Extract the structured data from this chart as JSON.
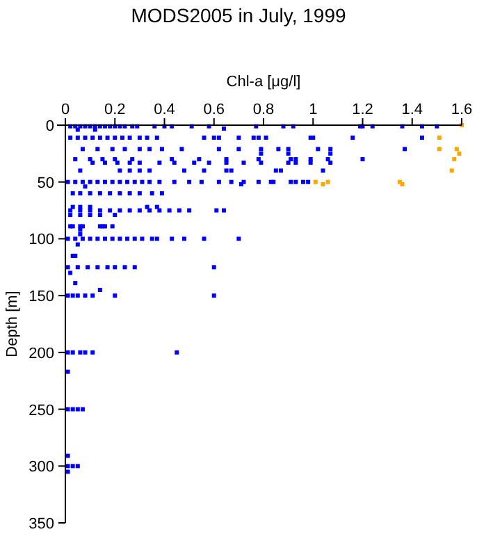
{
  "chart_data": {
    "type": "scatter",
    "title": "MODS2005 in July, 1999",
    "xlabel": "Chl-a [μg/l]",
    "ylabel": "Depth [m]",
    "xlim": [
      0,
      1.6
    ],
    "xticks": [
      0,
      0.2,
      0.4,
      0.6,
      0.8,
      1,
      1.2,
      1.4,
      1.6
    ],
    "ylim": [
      350,
      0
    ],
    "yticks": [
      0,
      50,
      100,
      150,
      200,
      250,
      300,
      350
    ],
    "grid": false,
    "marker": "square",
    "series": [
      {
        "color": "#0000ff",
        "x": [
          0.02,
          0.04,
          0.06,
          0.08,
          0.1,
          0.12,
          0.14,
          0.16,
          0.18,
          0.2,
          0.22,
          0.24,
          0.27,
          0.29,
          0.36,
          0.4,
          0.43,
          0.51,
          0.58,
          0.77,
          0.88,
          0.92,
          1.19,
          1.2,
          1.24,
          1.36,
          1.44,
          1.5,
          0.05,
          0.12,
          0.64,
          0.02,
          0.05,
          0.08,
          0.11,
          0.14,
          0.17,
          0.2,
          0.23,
          0.26,
          0.3,
          0.33,
          0.37,
          0.56,
          0.6,
          0.62,
          0.7,
          0.76,
          0.78,
          0.81,
          0.99,
          1.0,
          1.16,
          1.44,
          0.07,
          0.13,
          0.19,
          0.24,
          0.3,
          0.34,
          0.39,
          0.47,
          0.62,
          0.7,
          0.79,
          0.86,
          0.9,
          1.02,
          1.07,
          1.37,
          0.79,
          0.9,
          1.07,
          0.04,
          0.1,
          0.15,
          0.2,
          0.27,
          0.43,
          0.54,
          0.65,
          0.78,
          0.91,
          0.93,
          0.99,
          1.06,
          1.2,
          0.11,
          0.16,
          0.21,
          0.26,
          0.3,
          0.38,
          0.44,
          0.52,
          0.58,
          0.65,
          0.72,
          0.79,
          0.9,
          0.93,
          0.99,
          1.07,
          0.06,
          0.22,
          0.26,
          0.3,
          0.34,
          0.48,
          0.56,
          0.65,
          0.67,
          0.85,
          0.87,
          1.04,
          0.01,
          0.04,
          0.07,
          0.1,
          0.13,
          0.16,
          0.19,
          0.22,
          0.25,
          0.28,
          0.31,
          0.34,
          0.38,
          0.44,
          0.5,
          0.55,
          0.62,
          0.67,
          0.72,
          0.78,
          0.83,
          0.84,
          0.91,
          0.93,
          0.96,
          0.98,
          0.08,
          0.71,
          0.03,
          0.06,
          0.1,
          0.14,
          0.18,
          0.22,
          0.26,
          0.3,
          0.35,
          0.39,
          0.03,
          0.06,
          0.1,
          0.33,
          0.37,
          0.02,
          0.06,
          0.1,
          0.14,
          0.18,
          0.22,
          0.26,
          0.3,
          0.34,
          0.38,
          0.42,
          0.46,
          0.5,
          0.61,
          0.64,
          0.02,
          0.06,
          0.1,
          0.14,
          0.2,
          0.03,
          0.06,
          0.15,
          0.19,
          0.02,
          0.07,
          0.14,
          0.16,
          0.06,
          0.06,
          0.01,
          0.04,
          0.07,
          0.1,
          0.13,
          0.16,
          0.19,
          0.22,
          0.25,
          0.28,
          0.31,
          0.35,
          0.37,
          0.43,
          0.48,
          0.56,
          0.7,
          0.05,
          0.03,
          0.04,
          0.01,
          0.05,
          0.09,
          0.13,
          0.17,
          0.2,
          0.24,
          0.28,
          0.6,
          0.02,
          0.04,
          0.14,
          0.01,
          0.03,
          0.05,
          0.08,
          0.11,
          0.2,
          0.6,
          0.01,
          0.03,
          0.06,
          0.08,
          0.11,
          0.45,
          0.01,
          0.01,
          0.03,
          0.05,
          0.07,
          0.01,
          0.01,
          0.03,
          0.05,
          0.01
        ],
        "values": [
          1,
          1,
          1,
          1,
          1,
          1,
          1,
          1,
          1,
          1,
          1,
          1,
          1,
          1,
          1,
          1,
          1,
          1,
          1,
          1,
          1,
          1,
          1,
          1,
          1,
          1,
          1,
          1,
          4,
          4,
          3,
          11,
          11,
          11,
          11,
          11,
          11,
          11,
          11,
          11,
          11,
          11,
          11,
          11,
          11,
          11,
          11,
          11,
          11,
          11,
          11,
          11,
          11,
          11,
          21,
          21,
          21,
          21,
          21,
          21,
          21,
          21,
          21,
          21,
          21,
          21,
          21,
          21,
          21,
          21,
          25,
          25,
          25,
          30,
          30,
          30,
          30,
          30,
          30,
          30,
          30,
          30,
          30,
          30,
          30,
          30,
          30,
          33,
          33,
          33,
          33,
          33,
          33,
          33,
          33,
          33,
          33,
          33,
          33,
          33,
          33,
          33,
          33,
          40,
          40,
          40,
          40,
          40,
          40,
          40,
          40,
          40,
          40,
          40,
          40,
          50,
          50,
          50,
          50,
          50,
          50,
          50,
          50,
          50,
          50,
          50,
          50,
          50,
          50,
          50,
          50,
          50,
          50,
          50,
          50,
          50,
          50,
          50,
          50,
          50,
          50,
          54,
          52,
          60,
          60,
          60,
          60,
          60,
          60,
          60,
          60,
          60,
          60,
          72,
          72,
          72,
          72,
          72,
          75,
          75,
          75,
          75,
          75,
          75,
          75,
          75,
          75,
          75,
          75,
          75,
          75,
          75,
          75,
          79,
          79,
          79,
          79,
          79,
          89,
          89,
          89,
          89,
          89,
          89,
          89,
          89,
          92,
          96,
          100,
          100,
          100,
          100,
          100,
          100,
          100,
          100,
          100,
          100,
          100,
          100,
          100,
          100,
          100,
          100,
          100,
          105,
          115,
          115,
          125,
          125,
          125,
          125,
          125,
          125,
          125,
          125,
          125,
          130,
          139,
          145,
          150,
          150,
          150,
          150,
          150,
          150,
          150,
          200,
          200,
          200,
          200,
          200,
          200,
          217,
          250,
          250,
          250,
          250,
          291,
          300,
          300,
          300,
          305
        ]
      },
      {
        "color": "#ffa500",
        "x": [
          1.6,
          1.51,
          1.51,
          1.58,
          1.59,
          1.57,
          1.56,
          1.01,
          1.04,
          1.06,
          1.35,
          1.36
        ],
        "values": [
          0,
          11,
          21,
          21,
          25,
          30,
          40,
          50,
          52,
          50,
          50,
          52
        ]
      }
    ]
  }
}
